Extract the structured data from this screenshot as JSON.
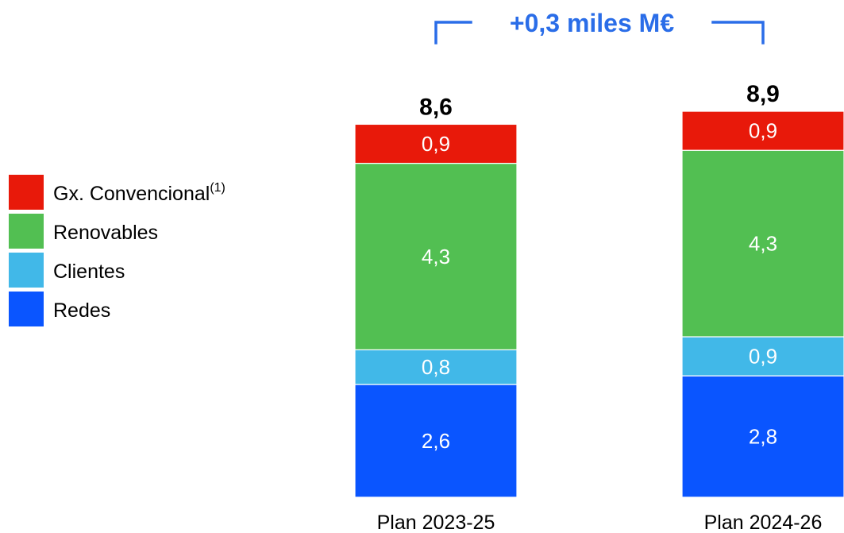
{
  "chart_data": {
    "type": "bar",
    "stacked": true,
    "categories": [
      "Plan 2023-25",
      "Plan 2024-26"
    ],
    "totals": [
      "8,6",
      "8,9"
    ],
    "total_values": [
      8.6,
      8.9
    ],
    "delta_label": "+0,3 miles M€",
    "series": [
      {
        "name": "Redes",
        "color": "#0a55ff",
        "values": [
          2.6,
          2.8
        ],
        "labels": [
          "2,6",
          "2,8"
        ]
      },
      {
        "name": "Clientes",
        "color": "#41b8e8",
        "values": [
          0.8,
          0.9
        ],
        "labels": [
          "0,8",
          "0,9"
        ]
      },
      {
        "name": "Renovables",
        "color": "#52bf52",
        "values": [
          4.3,
          4.3
        ],
        "labels": [
          "4,3",
          "4,3"
        ]
      },
      {
        "name": "Gx. Convencional",
        "note": "(1)",
        "color": "#e8190a",
        "values": [
          0.9,
          0.9
        ],
        "labels": [
          "0,9",
          "0,9"
        ]
      }
    ],
    "legend": {
      "placement": "left",
      "order": [
        "Gx. Convencional",
        "Renovables",
        "Clientes",
        "Redes"
      ]
    },
    "grid": false,
    "colors": {
      "delta": "#2a6de8",
      "segment_label": "#ffffff",
      "total_label": "#000000"
    }
  }
}
